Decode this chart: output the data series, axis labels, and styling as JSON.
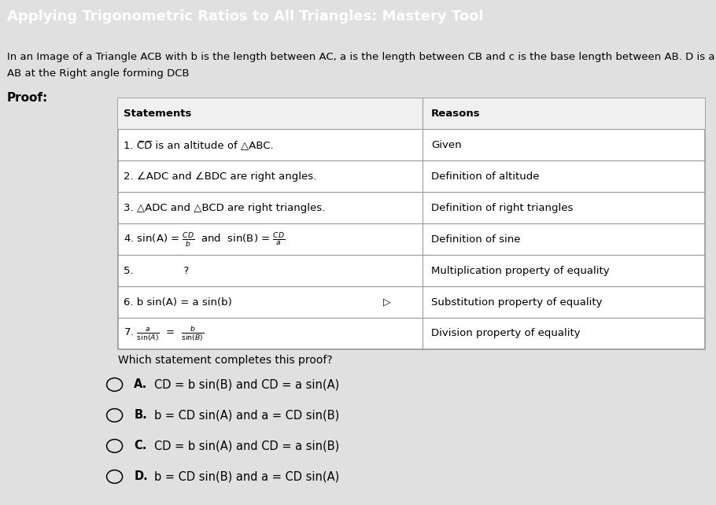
{
  "title": "Applying Trigonometric Ratios to All Triangles: Mastery Tool",
  "title_bg": "#3b9cd9",
  "title_color": "#ffffff",
  "intro_line1": "In an Image of a Triangle ACB with b is the length between AC, a is the length between CB and c is the base length between AB. D is a po",
  "intro_line2": "AB at the Right angle forming DCB",
  "proof_label": "Proof:",
  "which_statement": "Which statement completes this proof?",
  "table_statements": [
    "Statements",
    "1. CD is an altitude of △ABC.",
    "2. ∠ADC and ∠BDC are right angles.",
    "3. △ADC and △BCD are right triangles.",
    "4_special",
    "5.               ?",
    "6. b sin(A) = a sin(b)",
    "7_special"
  ],
  "table_reasons": [
    "Reasons",
    "Given",
    "Definition of altitude",
    "Definition of right triangles",
    "Definition of sine",
    "Multiplication property of equality",
    "Substitution property of equality",
    "Division property of equality"
  ],
  "options": [
    [
      "A.",
      "CD = b sin(B) and CD = a sin(A)"
    ],
    [
      "B.",
      "b = CD sin(A) and a = CD sin(B)"
    ],
    [
      "C.",
      "CD = b sin(A) and CD = a sin(B)"
    ],
    [
      "D.",
      "b = CD sin(B) and a = CD sin(A)"
    ]
  ],
  "table_line_color": "#999999",
  "body_bg": "#e0e0e0"
}
